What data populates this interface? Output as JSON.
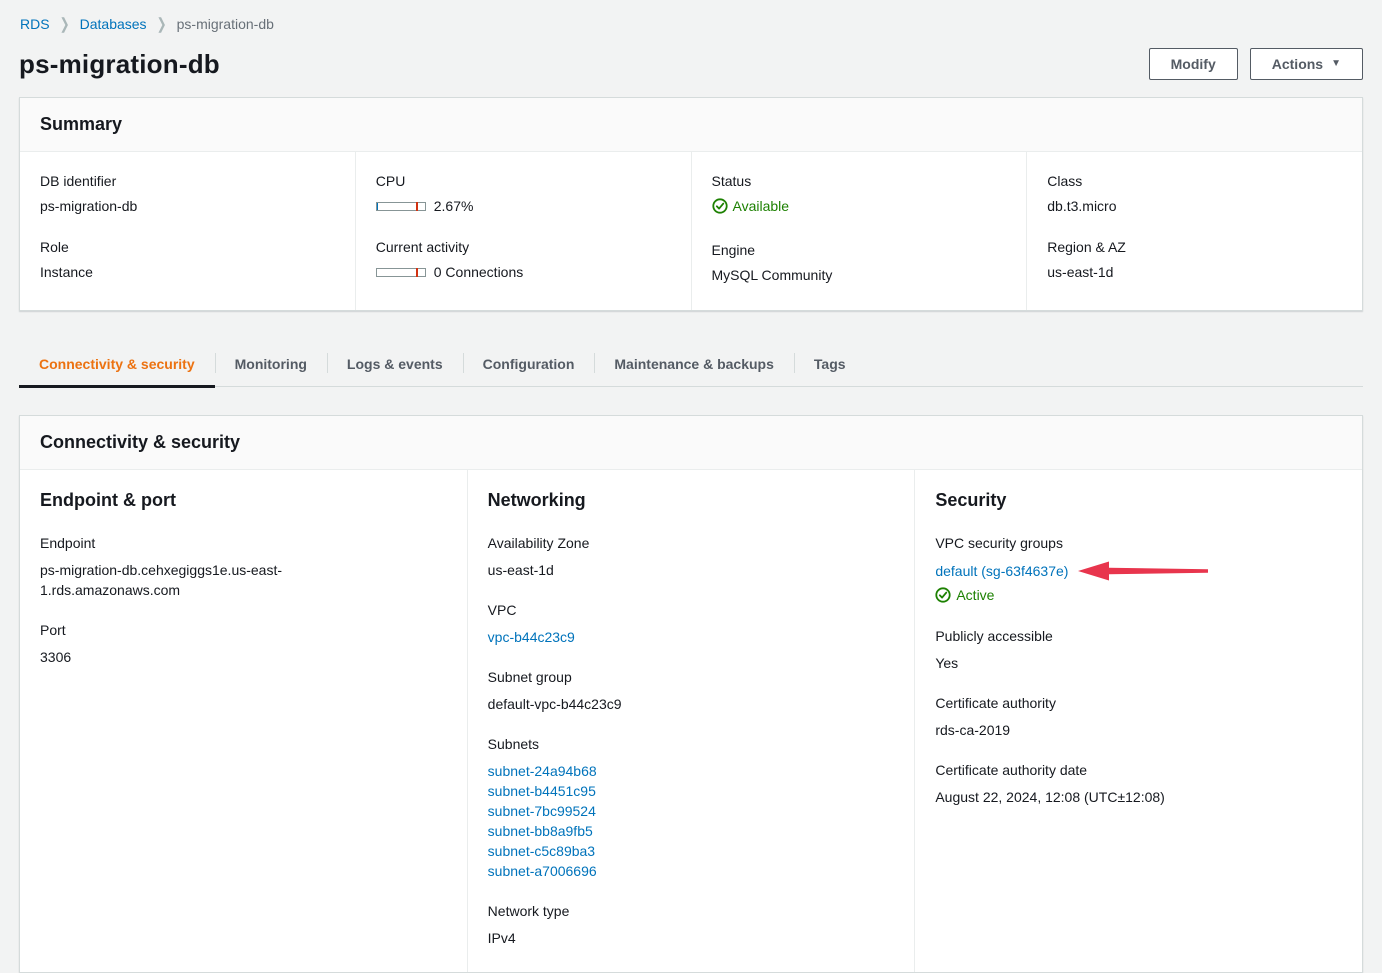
{
  "breadcrumb": {
    "items": [
      {
        "label": "RDS"
      },
      {
        "label": "Databases"
      },
      {
        "label": "ps-migration-db"
      }
    ]
  },
  "header": {
    "title": "ps-migration-db",
    "modify_label": "Modify",
    "actions_label": "Actions"
  },
  "summary": {
    "title": "Summary",
    "fields": {
      "db_identifier": {
        "label": "DB identifier",
        "value": "ps-migration-db"
      },
      "role": {
        "label": "Role",
        "value": "Instance"
      },
      "cpu": {
        "label": "CPU",
        "value": "2.67%",
        "percent": 2.67
      },
      "current_activity": {
        "label": "Current activity",
        "value": "0 Connections",
        "count": 0
      },
      "status": {
        "label": "Status",
        "value": "Available"
      },
      "engine": {
        "label": "Engine",
        "value": "MySQL Community"
      },
      "class": {
        "label": "Class",
        "value": "db.t3.micro"
      },
      "region_az": {
        "label": "Region & AZ",
        "value": "us-east-1d"
      }
    }
  },
  "tabs": {
    "items": [
      {
        "label": "Connectivity & security",
        "active": true
      },
      {
        "label": "Monitoring",
        "active": false
      },
      {
        "label": "Logs & events",
        "active": false
      },
      {
        "label": "Configuration",
        "active": false
      },
      {
        "label": "Maintenance & backups",
        "active": false
      },
      {
        "label": "Tags",
        "active": false
      }
    ]
  },
  "connectivity": {
    "title": "Connectivity & security",
    "endpoint_port": {
      "heading": "Endpoint & port",
      "endpoint_label": "Endpoint",
      "endpoint_value": "ps-migration-db.cehxegiggs1e.us-east-1.rds.amazonaws.com",
      "port_label": "Port",
      "port_value": "3306"
    },
    "networking": {
      "heading": "Networking",
      "az_label": "Availability Zone",
      "az_value": "us-east-1d",
      "vpc_label": "VPC",
      "vpc_value": "vpc-b44c23c9",
      "subnet_group_label": "Subnet group",
      "subnet_group_value": "default-vpc-b44c23c9",
      "subnets_label": "Subnets",
      "subnets": [
        "subnet-24a94b68",
        "subnet-b4451c95",
        "subnet-7bc99524",
        "subnet-bb8a9fb5",
        "subnet-c5c89ba3",
        "subnet-a7006696"
      ],
      "network_type_label": "Network type",
      "network_type_value": "IPv4"
    },
    "security": {
      "heading": "Security",
      "vpc_sg_label": "VPC security groups",
      "vpc_sg_link": "default (sg-63f4637e)",
      "vpc_sg_status": "Active",
      "publicly_accessible_label": "Publicly accessible",
      "publicly_accessible_value": "Yes",
      "ca_label": "Certificate authority",
      "ca_value": "rds-ca-2019",
      "ca_date_label": "Certificate authority date",
      "ca_date_value": "August 22, 2024, 12:08 (UTC±12:08)"
    }
  },
  "colors": {
    "link_blue": "#0073bb",
    "active_tab_orange": "#ec7211",
    "status_green": "#1d8102",
    "arrow_red": "#e8354d",
    "gauge_tick_red": "#d13212",
    "page_background": "#f2f3f3"
  }
}
